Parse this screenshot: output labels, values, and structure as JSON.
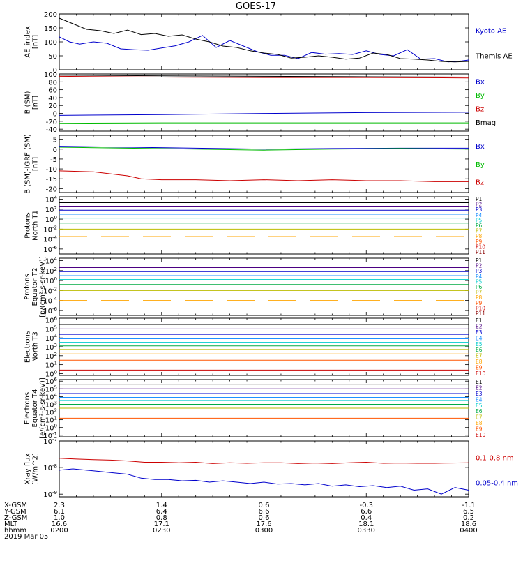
{
  "title": "GOES-17",
  "chart_data": [
    {
      "id": "ae",
      "type": "line",
      "ylabel": [
        "AE_index",
        "[nT]"
      ],
      "ylim": [
        0,
        200
      ],
      "yticks": [
        0,
        50,
        100,
        150,
        200
      ],
      "log": false,
      "series": [
        {
          "name": "Kyoto AE",
          "color": "#0000cc",
          "x": [
            0,
            3,
            6,
            10,
            14,
            18,
            22,
            26,
            30,
            34,
            38,
            42,
            46,
            50,
            54,
            58,
            62,
            66,
            70,
            74,
            78,
            82,
            86,
            90,
            94,
            98,
            102,
            106,
            110,
            114,
            118,
            120
          ],
          "y": [
            118,
            100,
            92,
            100,
            95,
            75,
            72,
            70,
            78,
            86,
            100,
            123,
            80,
            105,
            85,
            65,
            52,
            52,
            40,
            62,
            56,
            58,
            55,
            68,
            55,
            50,
            72,
            38,
            40,
            28,
            32,
            35
          ]
        },
        {
          "name": "Themis AE",
          "color": "#000000",
          "x": [
            0,
            4,
            8,
            12,
            16,
            20,
            24,
            28,
            32,
            36,
            40,
            44,
            48,
            52,
            56,
            60,
            64,
            68,
            72,
            76,
            80,
            84,
            88,
            92,
            96,
            100,
            104,
            108,
            112,
            116,
            120
          ],
          "y": [
            185,
            165,
            145,
            140,
            130,
            142,
            126,
            130,
            120,
            125,
            110,
            100,
            85,
            80,
            68,
            60,
            55,
            42,
            45,
            50,
            45,
            38,
            42,
            60,
            55,
            40,
            38,
            35,
            30,
            28,
            30
          ]
        }
      ]
    },
    {
      "id": "bsm",
      "type": "line",
      "ylabel": [
        "B (SM)",
        "[nT]"
      ],
      "ylim": [
        -45,
        100
      ],
      "yticks": [
        -40,
        -20,
        0,
        20,
        40,
        60,
        80,
        100
      ],
      "log": false,
      "series": [
        {
          "name": "Bx",
          "color": "#0000cc",
          "x": [
            0,
            30,
            60,
            90,
            120
          ],
          "y": [
            -5,
            -3,
            0,
            2,
            3
          ]
        },
        {
          "name": "By",
          "color": "#00bb00",
          "x": [
            0,
            30,
            60,
            90,
            120
          ],
          "y": [
            -25,
            -24,
            -24,
            -24,
            -24
          ]
        },
        {
          "name": "Bz",
          "color": "#cc0000",
          "x": [
            0,
            30,
            60,
            90,
            120
          ],
          "y": [
            94,
            92,
            91,
            91,
            90
          ]
        },
        {
          "name": "Bmag",
          "color": "#000000",
          "x": [
            0,
            30,
            60,
            90,
            120
          ],
          "y": [
            97,
            95,
            94,
            93,
            92
          ]
        }
      ]
    },
    {
      "id": "bigrf",
      "type": "line",
      "ylabel": [
        "B (SM)-IGRF (SM)",
        "[nT]"
      ],
      "ylim": [
        -22,
        7
      ],
      "yticks": [
        -20,
        -15,
        -10,
        -5,
        0,
        5
      ],
      "log": false,
      "series": [
        {
          "name": "Bx",
          "color": "#0000cc",
          "x": [
            0,
            20,
            40,
            60,
            80,
            100,
            120
          ],
          "y": [
            1.5,
            1,
            0.5,
            0,
            0.3,
            0.5,
            0.5
          ]
        },
        {
          "name": "By",
          "color": "#00bb00",
          "x": [
            0,
            20,
            40,
            60,
            80,
            100,
            120
          ],
          "y": [
            1,
            0.5,
            0,
            -0.5,
            0,
            0.3,
            0
          ]
        },
        {
          "name": "Bz",
          "color": "#cc0000",
          "x": [
            0,
            10,
            20,
            24,
            30,
            40,
            50,
            60,
            70,
            80,
            90,
            100,
            110,
            120
          ],
          "y": [
            -11,
            -11.5,
            -13.5,
            -15,
            -15.5,
            -15.5,
            -16,
            -15.5,
            -16,
            -15.5,
            -16,
            -16,
            -16.5,
            -16.5
          ]
        }
      ]
    },
    {
      "id": "pn",
      "type": "line",
      "ylabel": [
        "Protons",
        "North T1"
      ],
      "log": true,
      "ylim": [
        -7,
        4.5
      ],
      "ytick_labels": [
        {
          "e": 4,
          "t": "10^4"
        },
        {
          "e": 2,
          "t": "10^2"
        },
        {
          "e": 0,
          "t": "10^0"
        },
        {
          "e": -2,
          "t": "10^-2"
        },
        {
          "e": -4,
          "t": "10^-4"
        },
        {
          "e": -6,
          "t": "10^-6"
        }
      ],
      "series": [
        {
          "name": "P1",
          "color": "#000000",
          "y": 3.3
        },
        {
          "name": "P2",
          "color": "#4b0082",
          "y": 2.6
        },
        {
          "name": "P3",
          "color": "#0000cc",
          "y": 1.8
        },
        {
          "name": "P4",
          "color": "#1e90ff",
          "y": 1.0
        },
        {
          "name": "P5",
          "color": "#00cccc",
          "y": 0.2
        },
        {
          "name": "P6",
          "color": "#00aa44",
          "y": -0.8
        },
        {
          "name": "P7",
          "color": "#bbbb00",
          "y": -2.0
        },
        {
          "name": "P8",
          "color": "#ffa500",
          "y": -3.5,
          "dashed": true
        },
        {
          "name": "P9",
          "color": "#ff5500",
          "y": -6.0,
          "hidden": true
        },
        {
          "name": "P10",
          "color": "#cc0000",
          "y": -6.5,
          "hidden": true
        },
        {
          "name": "P11",
          "color": "#880000",
          "y": -7.0,
          "hidden": true
        }
      ]
    },
    {
      "id": "pe",
      "type": "line",
      "ylabel": [
        "Protons",
        "Equator T2",
        "[p/(cm²-s-sr-keV)]"
      ],
      "log": true,
      "ylim": [
        -7,
        4.5
      ],
      "ytick_labels": [
        {
          "e": 4,
          "t": "10^4"
        },
        {
          "e": 2,
          "t": "10^2"
        },
        {
          "e": 0,
          "t": "10^0"
        },
        {
          "e": -2,
          "t": "10^-2"
        },
        {
          "e": -4,
          "t": "10^-4"
        },
        {
          "e": -6,
          "t": "10^-6"
        }
      ],
      "series": [
        {
          "name": "P1",
          "color": "#000000",
          "y": 3.3
        },
        {
          "name": "P2",
          "color": "#4b0082",
          "y": 2.6
        },
        {
          "name": "P3",
          "color": "#0000cc",
          "y": 1.8
        },
        {
          "name": "P4",
          "color": "#1e90ff",
          "y": 1.0
        },
        {
          "name": "P5",
          "color": "#00cccc",
          "y": 0.2
        },
        {
          "name": "P6",
          "color": "#00aa44",
          "y": -0.8
        },
        {
          "name": "P7",
          "color": "#bbbb00",
          "y": -2.0
        },
        {
          "name": "P8",
          "color": "#ffa500",
          "y": -4.0,
          "dashed": true
        },
        {
          "name": "P9",
          "color": "#ff5500",
          "y": -6.0,
          "hidden": true
        },
        {
          "name": "P10",
          "color": "#cc0000",
          "y": -6.5,
          "hidden": true
        },
        {
          "name": "P11",
          "color": "#880000",
          "y": -7.0,
          "hidden": true
        }
      ]
    },
    {
      "id": "en",
      "type": "line",
      "ylabel": [
        "Electrons",
        "North T3"
      ],
      "log": true,
      "ylim": [
        -0.2,
        6.2
      ],
      "ytick_labels": [
        {
          "e": 6,
          "t": "10^6"
        },
        {
          "e": 5,
          "t": "10^5"
        },
        {
          "e": 4,
          "t": "10^4"
        },
        {
          "e": 3,
          "t": "10^3"
        },
        {
          "e": 2,
          "t": "10^2"
        },
        {
          "e": 1,
          "t": "10^1"
        },
        {
          "e": 0,
          "t": "10^0"
        }
      ],
      "series": [
        {
          "name": "E1",
          "color": "#000000",
          "y": 5.5
        },
        {
          "name": "E2",
          "color": "#4b0082",
          "y": 5.0
        },
        {
          "name": "E3",
          "color": "#0000cc",
          "y": 4.4
        },
        {
          "name": "E4",
          "color": "#1e90ff",
          "y": 3.9
        },
        {
          "name": "E5",
          "color": "#00cccc",
          "y": 3.5
        },
        {
          "name": "E6",
          "color": "#00aa44",
          "y": 3.1
        },
        {
          "name": "E7",
          "color": "#bbbb00",
          "y": 2.7
        },
        {
          "name": "E8",
          "color": "#ffa500",
          "y": 2.2
        },
        {
          "name": "E9",
          "color": "#ff5500",
          "y": 1.5
        },
        {
          "name": "E10",
          "color": "#cc0000",
          "y": 0.4
        }
      ]
    },
    {
      "id": "ee",
      "type": "line",
      "ylabel": [
        "Electrons",
        "Equator T4",
        "[e/(cm²-s-sr-keV)]"
      ],
      "log": true,
      "ylim": [
        -1.2,
        6.2
      ],
      "ytick_labels": [
        {
          "e": 6,
          "t": "10^6"
        },
        {
          "e": 5,
          "t": "10^5"
        },
        {
          "e": 4,
          "t": "10^4"
        },
        {
          "e": 3,
          "t": "10^3"
        },
        {
          "e": 2,
          "t": "10^2"
        },
        {
          "e": 1,
          "t": "10^1"
        },
        {
          "e": 0,
          "t": "10^0"
        },
        {
          "e": -1,
          "t": "10^-1"
        }
      ],
      "series": [
        {
          "name": "E1",
          "color": "#000000",
          "y": 5.6
        },
        {
          "name": "E2",
          "color": "#4b0082",
          "y": 5.0
        },
        {
          "name": "E3",
          "color": "#0000cc",
          "y": 4.4
        },
        {
          "name": "E4",
          "color": "#1e90ff",
          "y": 3.9
        },
        {
          "name": "E5",
          "color": "#00cccc",
          "y": 3.5
        },
        {
          "name": "E6",
          "color": "#00aa44",
          "y": 3.0
        },
        {
          "name": "E7",
          "color": "#bbbb00",
          "y": 2.5
        },
        {
          "name": "E8",
          "color": "#ffa500",
          "y": 2.0
        },
        {
          "name": "E9",
          "color": "#ff5500",
          "y": 1.2
        },
        {
          "name": "E10",
          "color": "#cc0000",
          "y": 0.2
        }
      ]
    },
    {
      "id": "xray",
      "type": "line",
      "ylabel": [
        "Xray flux",
        "[W/m^2]"
      ],
      "log": true,
      "ylim": [
        -9.1,
        -7
      ],
      "ytick_labels": [
        {
          "e": -7,
          "t": "10^-7"
        },
        {
          "e": -8,
          "t": "10^-8"
        },
        {
          "e": -9,
          "t": "10^-9"
        }
      ],
      "series": [
        {
          "name": "0.1-0.8 nm",
          "color": "#cc0000",
          "x": [
            0,
            5,
            10,
            15,
            20,
            25,
            30,
            35,
            40,
            45,
            50,
            55,
            60,
            65,
            70,
            75,
            80,
            85,
            90,
            95,
            100,
            105,
            110,
            115,
            120
          ],
          "y": [
            -7.65,
            -7.68,
            -7.7,
            -7.72,
            -7.75,
            -7.8,
            -7.8,
            -7.82,
            -7.8,
            -7.85,
            -7.82,
            -7.84,
            -7.82,
            -7.82,
            -7.85,
            -7.83,
            -7.85,
            -7.82,
            -7.8,
            -7.84,
            -7.83,
            -7.84,
            -7.84,
            -7.83,
            -7.82
          ]
        },
        {
          "name": "0.05-0.4 nm",
          "color": "#0000cc",
          "x": [
            0,
            4,
            8,
            12,
            16,
            20,
            24,
            28,
            32,
            36,
            40,
            44,
            48,
            52,
            56,
            60,
            64,
            68,
            72,
            76,
            80,
            84,
            88,
            92,
            96,
            100,
            104,
            108,
            112,
            116,
            120
          ],
          "y": [
            -8.1,
            -8.05,
            -8.1,
            -8.15,
            -8.2,
            -8.25,
            -8.4,
            -8.45,
            -8.45,
            -8.5,
            -8.48,
            -8.55,
            -8.5,
            -8.55,
            -8.6,
            -8.55,
            -8.62,
            -8.6,
            -8.65,
            -8.6,
            -8.7,
            -8.65,
            -8.72,
            -8.68,
            -8.75,
            -8.7,
            -8.85,
            -8.8,
            -9.0,
            -8.75,
            -8.85
          ]
        }
      ]
    }
  ],
  "legends": {
    "ae": [
      "Kyoto AE",
      "Themis AE"
    ],
    "bsm": [
      "Bx",
      "By",
      "Bz",
      "Bmag"
    ],
    "bigrf": [
      "Bx",
      "By",
      "Bz"
    ],
    "pn": [
      "P1",
      "P2",
      "P3",
      "P4",
      "P5",
      "P6",
      "P7",
      "P8",
      "P9",
      "P10",
      "P11"
    ],
    "pe": [
      "P1",
      "P2",
      "P3",
      "P4",
      "P5",
      "P6",
      "P7",
      "P8",
      "P9",
      "P10",
      "P11"
    ],
    "en": [
      "E1",
      "E2",
      "E3",
      "E4",
      "E5",
      "E6",
      "E7",
      "E8",
      "E9",
      "E10"
    ],
    "ee": [
      "E1",
      "E2",
      "E3",
      "E4",
      "E5",
      "E6",
      "E7",
      "E8",
      "E9",
      "E10"
    ],
    "xray": [
      "0.1-0.8 nm",
      "0.05-0.4 nm"
    ]
  },
  "x_axis": {
    "range_minutes": [
      0,
      120
    ],
    "tick_minutes": [
      0,
      30,
      60,
      90,
      120
    ],
    "row_labels": [
      "X-GSM",
      "Y-GSM",
      "Z-GSM",
      "MLT",
      "hhmm",
      "2019 Mar 05"
    ],
    "rows": [
      [
        "2.3",
        "1.4",
        "0.6",
        "-0.3",
        "-1.1"
      ],
      [
        "6.1",
        "6.4",
        "6.6",
        "6.6",
        "6.5"
      ],
      [
        "1.0",
        "0.8",
        "0.6",
        "0.4",
        "0.2"
      ],
      [
        "16.6",
        "17.1",
        "17.6",
        "18.1",
        "18.6"
      ],
      [
        "0200",
        "0230",
        "0300",
        "0330",
        "0400"
      ]
    ]
  },
  "colors": {
    "axis": "#000000",
    "background": "#ffffff"
  }
}
